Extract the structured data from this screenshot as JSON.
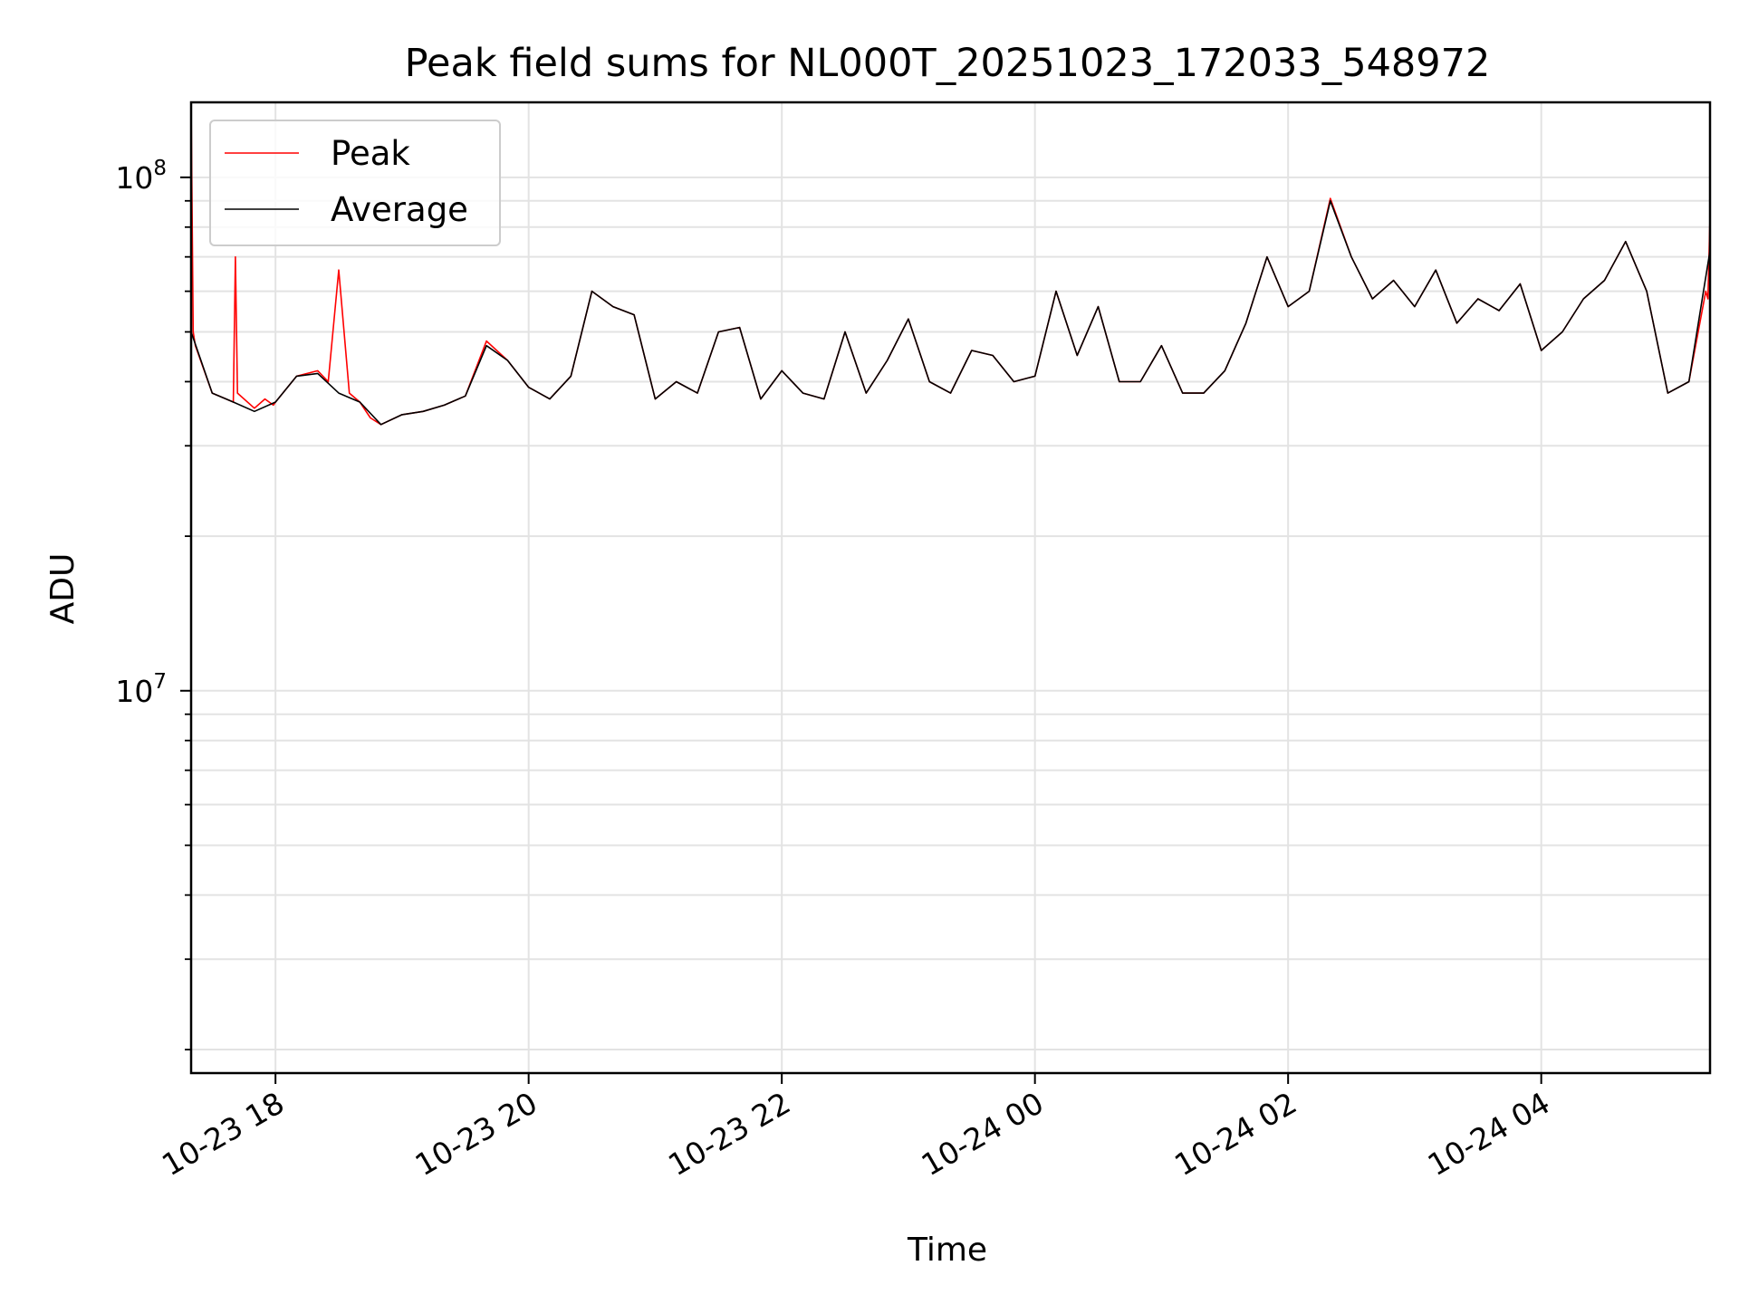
{
  "chart_data": {
    "type": "line",
    "title": "Peak field sums for NL000T_20251023_172033_548972",
    "xlabel": "Time",
    "ylabel": "ADU",
    "xlim": [
      "2025-10-23 17:20",
      "2025-10-24 05:20"
    ],
    "ylim": [
      1800000,
      140000000
    ],
    "yscale": "log",
    "grid": true,
    "legend": "top-left",
    "x_ticks": [
      "10-23 18",
      "10-23 20",
      "10-23 22",
      "10-24 00",
      "10-24 02",
      "10-24 04"
    ],
    "y_ticks": [
      "10^7",
      "10^8"
    ],
    "series": [
      {
        "name": "Peak",
        "color": "#ff0000",
        "x": [
          "2025-10-23 17:20",
          "2025-10-23 17:21",
          "2025-10-23 17:22",
          "2025-10-23 17:30",
          "2025-10-23 17:40",
          "2025-10-23 17:41",
          "2025-10-23 17:42",
          "2025-10-23 17:50",
          "2025-10-23 17:55",
          "2025-10-23 17:59",
          "2025-10-23 18:00",
          "18:10",
          "18:20",
          "18:25",
          "18:30",
          "18:35",
          "18:40",
          "18:45",
          "18:50",
          "19:00",
          "19:10",
          "19:20",
          "19:30",
          "19:40",
          "19:50",
          "20:00",
          "20:10",
          "20:20",
          "20:30",
          "20:40",
          "20:50",
          "21:00",
          "21:10",
          "21:20",
          "21:30",
          "21:40",
          "21:50",
          "22:00",
          "22:10",
          "22:20",
          "22:30",
          "22:40",
          "22:50",
          "23:00",
          "23:10",
          "23:20",
          "23:30",
          "23:40",
          "23:50",
          "00:00",
          "00:10",
          "00:20",
          "00:30",
          "00:40",
          "00:50",
          "01:00",
          "01:10",
          "01:20",
          "01:30",
          "01:40",
          "01:50",
          "02:00",
          "02:10",
          "02:20",
          "02:30",
          "02:40",
          "02:50",
          "03:00",
          "03:10",
          "03:20",
          "03:30",
          "03:40",
          "03:50",
          "04:00",
          "04:10",
          "04:20",
          "04:30",
          "04:40",
          "04:50",
          "05:00",
          "05:10",
          "05:18",
          "05:19",
          "05:20"
        ],
        "y": [
          140000000,
          50000000,
          47000000,
          38000000,
          36500000,
          70000000,
          38000000,
          35500000,
          37000000,
          36000000,
          36500000,
          41000000,
          42000000,
          40000000,
          66000000,
          38000000,
          36500000,
          34000000,
          33000000,
          34500000,
          35000000,
          36000000,
          37500000,
          48000000,
          44000000,
          39000000,
          37000000,
          41000000,
          60000000,
          56000000,
          54000000,
          37000000,
          40000000,
          38000000,
          50000000,
          51000000,
          37000000,
          42000000,
          38000000,
          37000000,
          50000000,
          38000000,
          44000000,
          53000000,
          40000000,
          38000000,
          46000000,
          45000000,
          40000000,
          41000000,
          60000000,
          45000000,
          56000000,
          40000000,
          40000000,
          47000000,
          38000000,
          38000000,
          42000000,
          52000000,
          70000000,
          56000000,
          60000000,
          91000000,
          70000000,
          58000000,
          63000000,
          56000000,
          66000000,
          52000000,
          58000000,
          55000000,
          62000000,
          46000000,
          50000000,
          58000000,
          63000000,
          75000000,
          60000000,
          38000000,
          40000000,
          60000000,
          58000000,
          84000000
        ]
      },
      {
        "name": "Average",
        "color": "#000000",
        "x": [
          "2025-10-23 17:20",
          "2025-10-23 17:30",
          "2025-10-23 17:40",
          "2025-10-23 17:50",
          "2025-10-23 18:00",
          "18:10",
          "18:20",
          "18:30",
          "18:40",
          "18:50",
          "19:00",
          "19:10",
          "19:20",
          "19:30",
          "19:40",
          "19:50",
          "20:00",
          "20:10",
          "20:20",
          "20:30",
          "20:40",
          "20:50",
          "21:00",
          "21:10",
          "21:20",
          "21:30",
          "21:40",
          "21:50",
          "22:00",
          "22:10",
          "22:20",
          "22:30",
          "22:40",
          "22:50",
          "23:00",
          "23:10",
          "23:20",
          "23:30",
          "23:40",
          "23:50",
          "00:00",
          "00:10",
          "00:20",
          "00:30",
          "00:40",
          "00:50",
          "01:00",
          "01:10",
          "01:20",
          "01:30",
          "01:40",
          "01:50",
          "02:00",
          "02:10",
          "02:20",
          "02:30",
          "02:40",
          "02:50",
          "03:00",
          "03:10",
          "03:20",
          "03:30",
          "03:40",
          "03:50",
          "04:00",
          "04:10",
          "04:20",
          "04:30",
          "04:40",
          "04:50",
          "05:00",
          "05:10",
          "05:20"
        ],
        "y": [
          50000000,
          38000000,
          36500000,
          35000000,
          36500000,
          41000000,
          41500000,
          38000000,
          36500000,
          33000000,
          34500000,
          35000000,
          36000000,
          37500000,
          47000000,
          44000000,
          39000000,
          37000000,
          41000000,
          60000000,
          56000000,
          54000000,
          37000000,
          40000000,
          38000000,
          50000000,
          51000000,
          37000000,
          42000000,
          38000000,
          37000000,
          50000000,
          38000000,
          44000000,
          53000000,
          40000000,
          38000000,
          46000000,
          45000000,
          40000000,
          41000000,
          60000000,
          45000000,
          56000000,
          40000000,
          40000000,
          47000000,
          38000000,
          38000000,
          42000000,
          52000000,
          70000000,
          56000000,
          60000000,
          90000000,
          70000000,
          58000000,
          63000000,
          56000000,
          66000000,
          52000000,
          58000000,
          55000000,
          62000000,
          46000000,
          50000000,
          58000000,
          63000000,
          75000000,
          60000000,
          38000000,
          40000000,
          72000000
        ]
      }
    ]
  }
}
